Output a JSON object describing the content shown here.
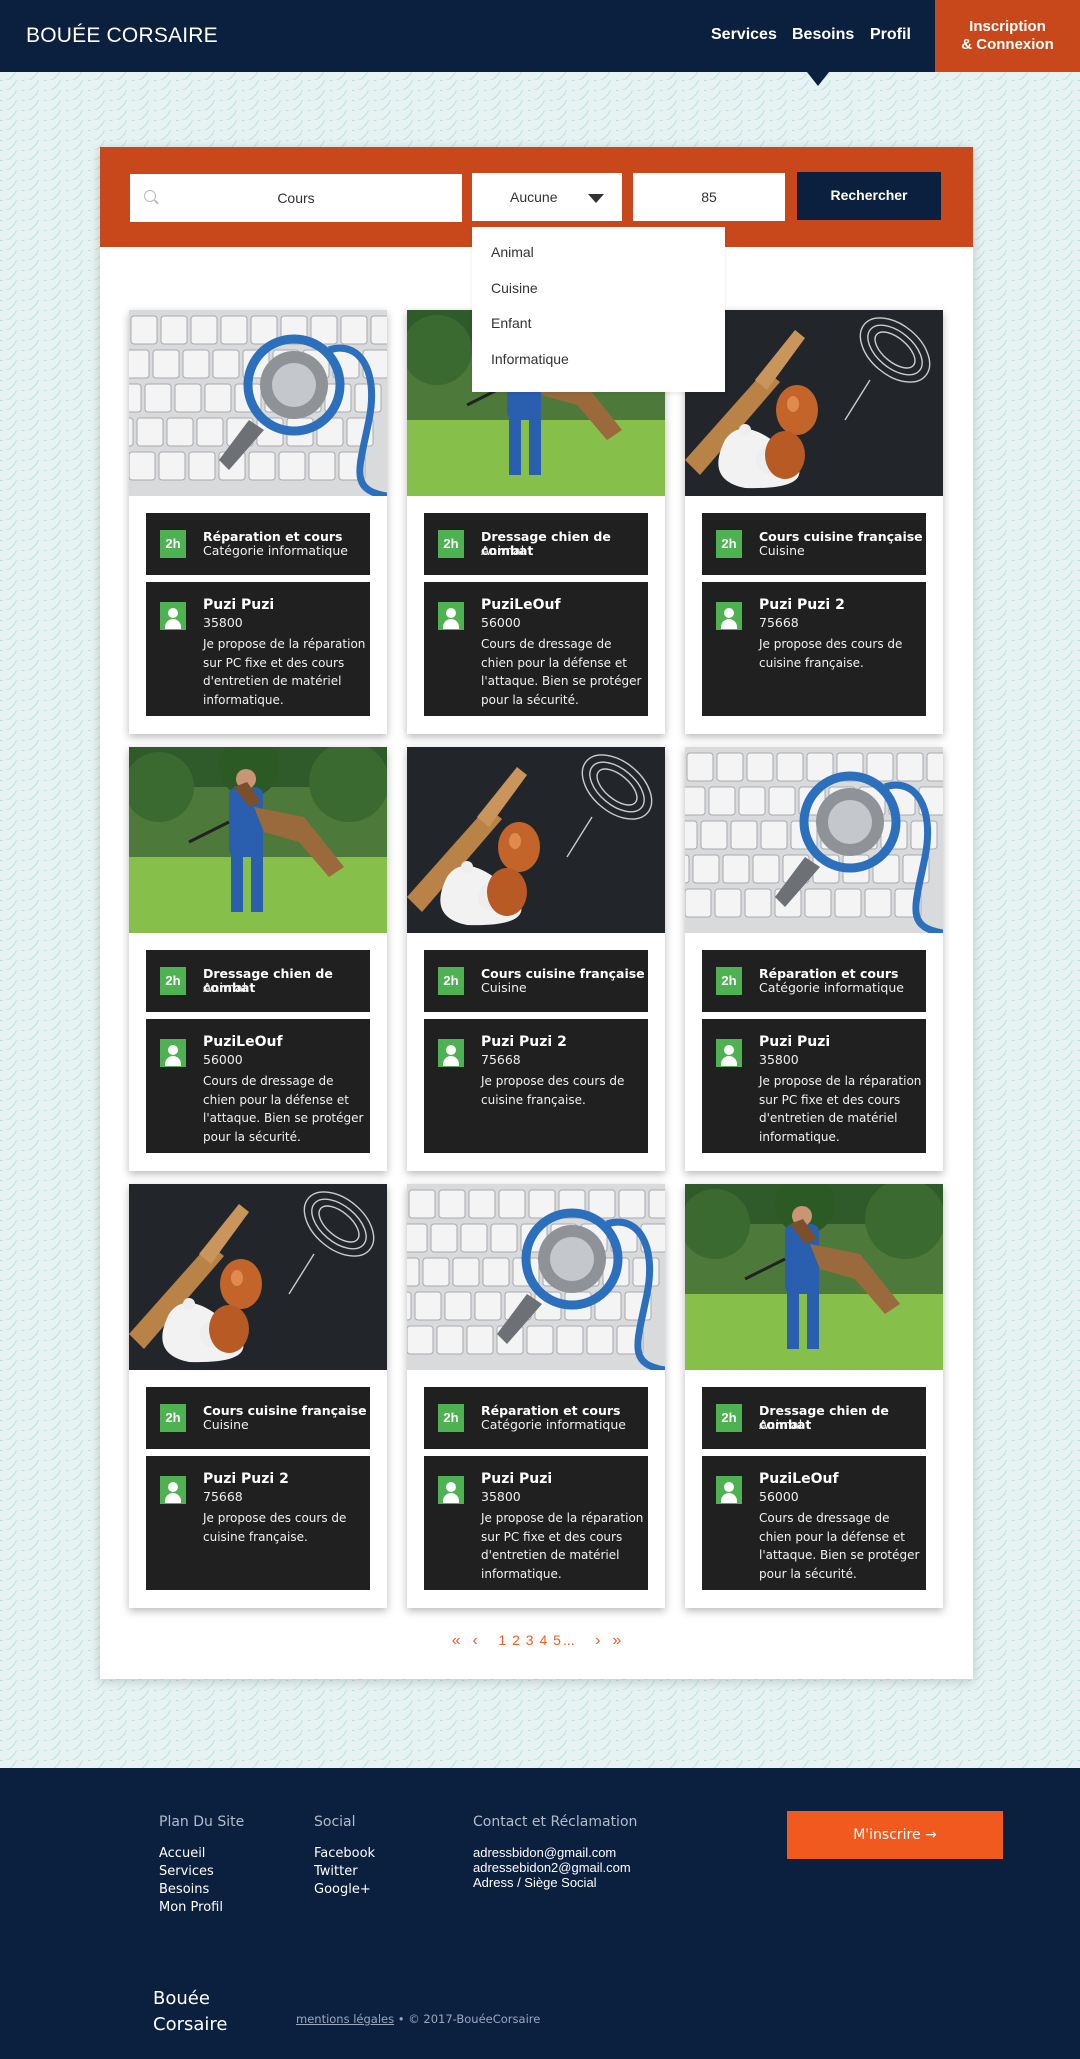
{
  "header": {
    "brand": "BOUÉE CORSAIRE",
    "nav": [
      "Services",
      "Besoins",
      "Profil"
    ],
    "login_line1": "Inscription",
    "login_line2": "& Connexion"
  },
  "search": {
    "query_value": "Cours",
    "category_selected": "Aucune",
    "category_options": [
      "Animal",
      "Cuisine",
      "Enfant",
      "Informatique"
    ],
    "distance_value": "85",
    "submit_label": "Rechercher"
  },
  "cards": [
    {
      "image": "keyboard-stethoscope",
      "duration": "2h",
      "title": "Réparation et cours",
      "category": "Catégorie informatique",
      "user": "Puzi Puzi",
      "zip": "35800",
      "description": "Je propose de la réparation sur PC fixe et des cours d'entretien de matériel informatique."
    },
    {
      "image": "dog-training",
      "duration": "2h",
      "title": "Dressage chien de combat",
      "category": "Animal",
      "user": "PuziLeOuf",
      "zip": "56000",
      "description": "Cours de dressage de chien pour la défense et l'attaque. Bien se protéger pour la sécurité."
    },
    {
      "image": "cooking-eggs",
      "duration": "2h",
      "title": "Cours cuisine française",
      "category": "Cuisine",
      "user": "Puzi Puzi 2",
      "zip": "75668",
      "description": "Je propose des cours de cuisine française."
    },
    {
      "image": "dog-training",
      "duration": "2h",
      "title": "Dressage chien de combat",
      "category": "Animal",
      "user": "PuziLeOuf",
      "zip": "56000",
      "description": "Cours de dressage de chien pour la défense et l'attaque. Bien se protéger pour la sécurité."
    },
    {
      "image": "cooking-eggs",
      "duration": "2h",
      "title": "Cours cuisine française",
      "category": "Cuisine",
      "user": "Puzi Puzi 2",
      "zip": "75668",
      "description": "Je propose des cours de cuisine française."
    },
    {
      "image": "keyboard-stethoscope",
      "duration": "2h",
      "title": "Réparation et cours",
      "category": "Catégorie informatique",
      "user": "Puzi Puzi",
      "zip": "35800",
      "description": "Je propose de la réparation sur PC fixe et des cours d'entretien de matériel informatique."
    },
    {
      "image": "cooking-eggs",
      "duration": "2h",
      "title": "Cours cuisine française",
      "category": "Cuisine",
      "user": "Puzi Puzi 2",
      "zip": "75668",
      "description": "Je propose des cours de cuisine française."
    },
    {
      "image": "keyboard-stethoscope",
      "duration": "2h",
      "title": "Réparation et cours",
      "category": "Catégorie informatique",
      "user": "Puzi Puzi",
      "zip": "35800",
      "description": "Je propose de la réparation sur PC fixe et des cours d'entretien de matériel informatique."
    },
    {
      "image": "dog-training",
      "duration": "2h",
      "title": "Dressage chien de combat",
      "category": "Animal",
      "user": "PuziLeOuf",
      "zip": "56000",
      "description": "Cours de dressage de chien pour la défense et l'attaque. Bien se protéger pour la sécurité."
    }
  ],
  "pagination": {
    "first": "«",
    "prev": "‹",
    "pages": [
      "1",
      "2",
      "3",
      "4",
      "5"
    ],
    "ellipsis": "...",
    "next": "›",
    "last": "»"
  },
  "footer": {
    "sitemap_heading": "Plan Du Site",
    "sitemap_links": [
      "Accueil",
      "Services",
      "Besoins",
      "Mon Profil"
    ],
    "social_heading": "Social",
    "social_links": [
      "Facebook",
      "Twitter",
      "Google+"
    ],
    "contact_heading": "Contact et Réclamation",
    "contact_lines": [
      "adressbidon@gmail.com",
      "adressebidon2@gmail.com",
      "Adress / Siège Social"
    ],
    "signup_label": "M'inscrire →",
    "brand_line1": "Bouée",
    "brand_line2": "Corsaire",
    "legal_link": "mentions légales",
    "copyright": "•  © 2017-BouéeCorsaire"
  },
  "colors": {
    "navy": "#0b1f3f",
    "orange": "#c8481b",
    "accent_orange": "#f05a1e",
    "green": "#4eb152",
    "card_dark": "#202020"
  }
}
